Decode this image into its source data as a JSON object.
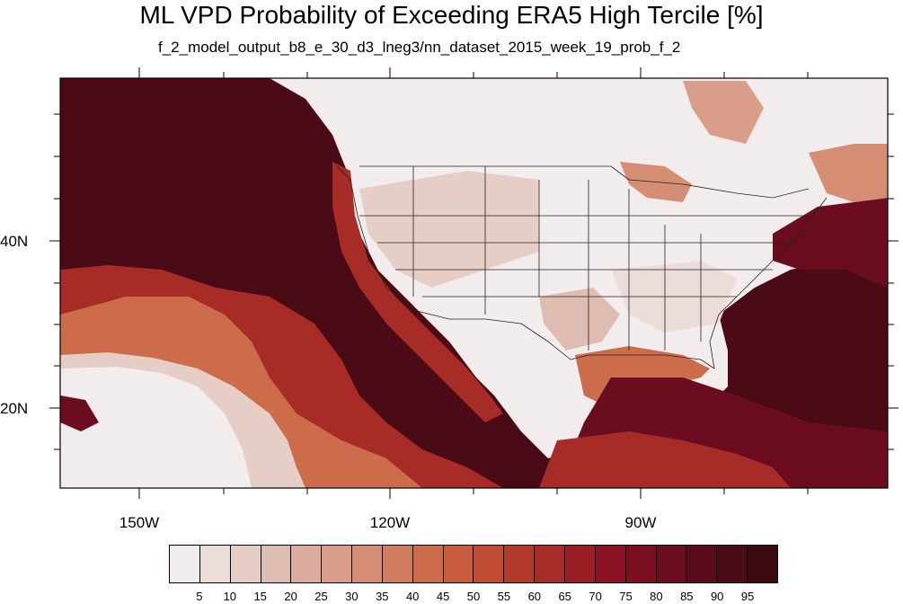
{
  "title": "ML VPD Probability of Exceeding ERA5 High Tercile [%]",
  "subtitle": "f_2_model_output_b8_e_30_d3_lneg3/nn_dataset_2015_week_19_prob_f_2",
  "axes": {
    "lon_labels": [
      "150W",
      "120W",
      "90W"
    ],
    "lat_labels": [
      "40N",
      "20N"
    ]
  },
  "colorbar": {
    "labels": [
      "5",
      "10",
      "15",
      "20",
      "25",
      "30",
      "35",
      "40",
      "45",
      "50",
      "55",
      "60",
      "65",
      "70",
      "75",
      "80",
      "85",
      "90",
      "95"
    ],
    "colors": [
      "#f3ecec",
      "#ecdcd8",
      "#e6cdc6",
      "#dfbcb2",
      "#dcad9f",
      "#d99d8a",
      "#d58d74",
      "#d17b5f",
      "#cd6c4a",
      "#c95c3d",
      "#c14a33",
      "#b43b2c",
      "#a72b26",
      "#9a1e24",
      "#8c1324",
      "#7d0f22",
      "#6c0d1f",
      "#5a0b1b",
      "#4a0a16",
      "#3b0812"
    ]
  },
  "map_colors": {
    "pale": "#f3ecec",
    "light": "#e6cdc6",
    "mid": "#d58d74",
    "orange": "#cd6c4a",
    "red": "#a72b26",
    "dark": "#6c0d1f",
    "darkest": "#4a0a16"
  }
}
